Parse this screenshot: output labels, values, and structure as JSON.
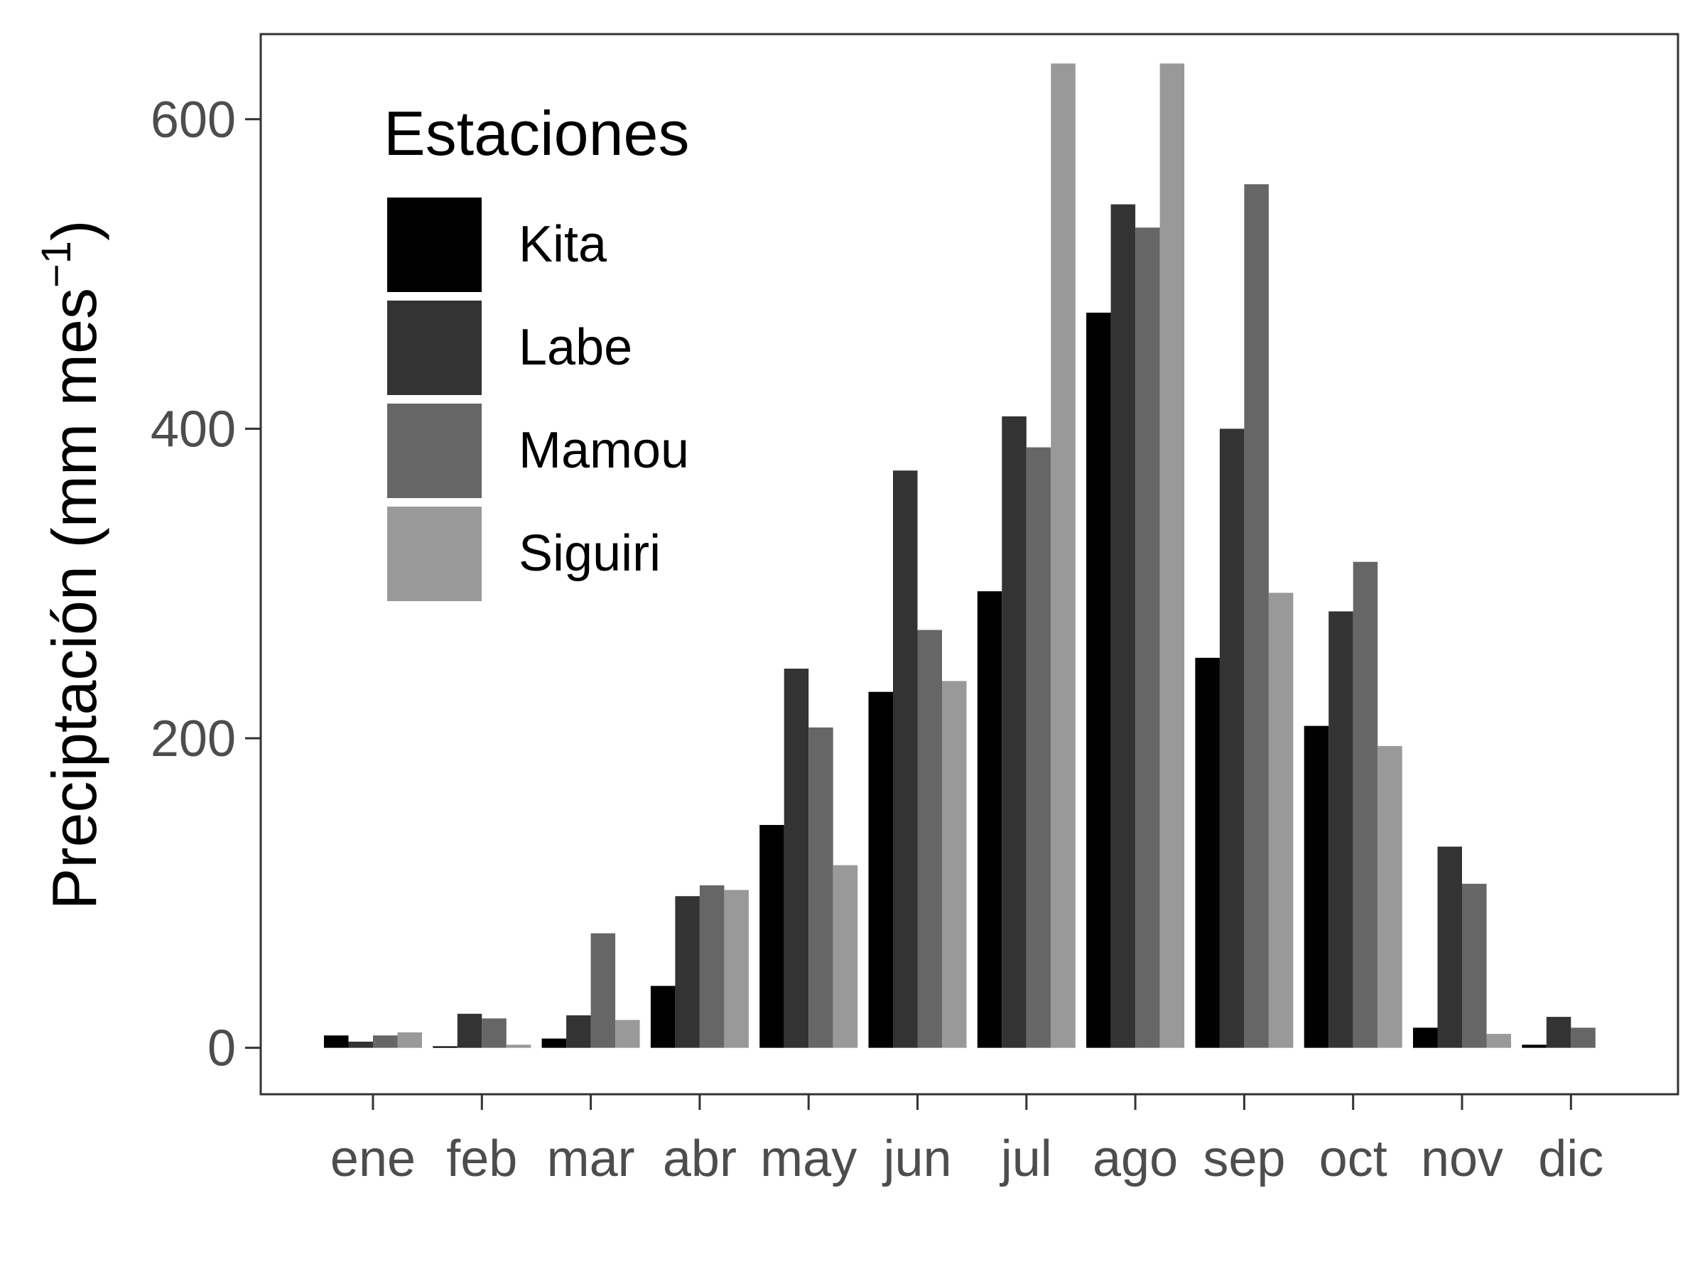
{
  "chart_data": {
    "type": "bar",
    "title": "",
    "xlabel": "",
    "ylabel": "Preciptación (mm mes",
    "ylabel_superscript": "−1",
    "ylabel_close": ")",
    "ylim": [
      -30,
      655
    ],
    "yticks": [
      0,
      200,
      400,
      600
    ],
    "ytick_labels": [
      "0",
      "200",
      "400",
      "600"
    ],
    "categories": [
      "ene",
      "feb",
      "mar",
      "abr",
      "may",
      "jun",
      "jul",
      "ago",
      "sep",
      "oct",
      "nov",
      "dic"
    ],
    "legend": {
      "title": "Estaciones",
      "position": "top-left"
    },
    "grid": false,
    "series": [
      {
        "name": "Kita",
        "color": "#000000",
        "values": [
          8,
          1,
          6,
          40,
          144,
          230,
          295,
          475,
          252,
          208,
          13,
          2
        ]
      },
      {
        "name": "Labe",
        "color": "#333333",
        "values": [
          4,
          22,
          21,
          98,
          245,
          373,
          408,
          545,
          400,
          282,
          130,
          20
        ]
      },
      {
        "name": "Mamou",
        "color": "#666666",
        "values": [
          8,
          19,
          74,
          105,
          207,
          270,
          388,
          530,
          558,
          314,
          106,
          13
        ]
      },
      {
        "name": "Siguiri",
        "color": "#999999",
        "values": [
          10,
          2,
          18,
          102,
          118,
          237,
          636,
          636,
          294,
          195,
          9,
          0
        ]
      }
    ]
  }
}
